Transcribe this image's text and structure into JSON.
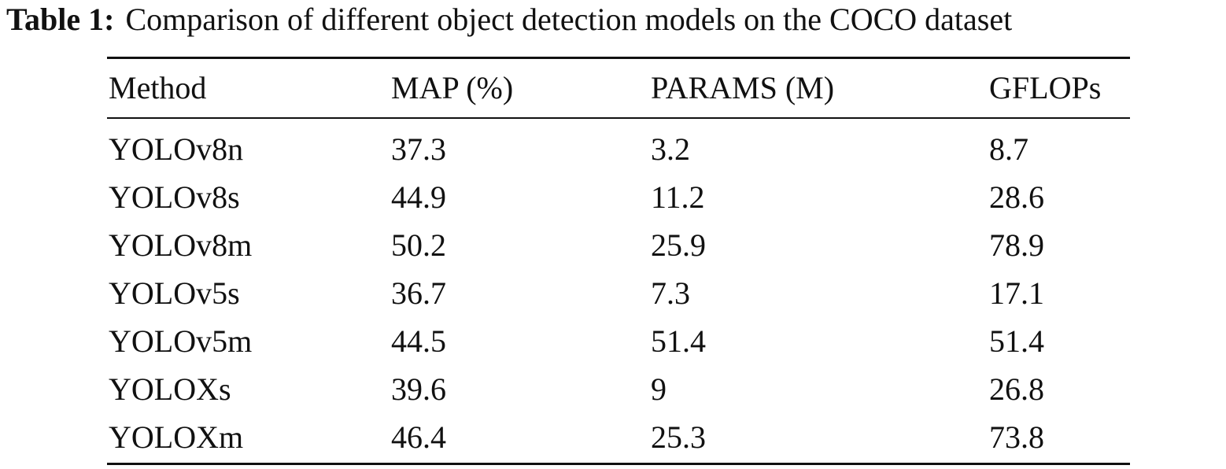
{
  "caption": {
    "label": "Table 1:",
    "text": "Comparison of different object detection models on the COCO dataset"
  },
  "table": {
    "header": [
      "Method",
      "MAP (%)",
      "PARAMS (M)",
      "GFLOPs"
    ],
    "rows": [
      [
        "YOLOv8n",
        "37.3",
        "3.2",
        "8.7"
      ],
      [
        "YOLOv8s",
        "44.9",
        "11.2",
        "28.6"
      ],
      [
        "YOLOv8m",
        "50.2",
        "25.9",
        "78.9"
      ],
      [
        "YOLOv5s",
        "36.7",
        "7.3",
        "17.1"
      ],
      [
        "YOLOv5m",
        "44.5",
        "51.4",
        "51.4"
      ],
      [
        "YOLOXs",
        "39.6",
        "9",
        "26.8"
      ],
      [
        "YOLOXm",
        "46.4",
        "25.3",
        "73.8"
      ]
    ]
  }
}
